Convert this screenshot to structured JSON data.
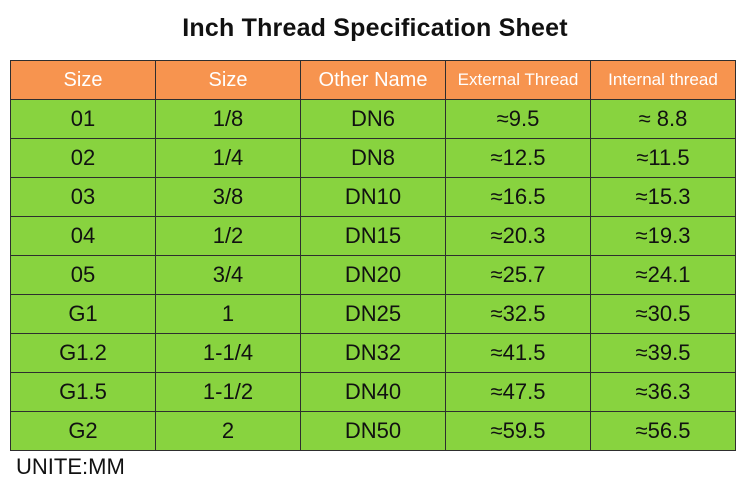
{
  "title": "Inch Thread Specification Sheet",
  "header": [
    "Size",
    "Size",
    "Other Name",
    "External Thread",
    "Internal thread"
  ],
  "rows": [
    [
      "01",
      "1/8",
      "DN6",
      "≈9.5",
      "≈ 8.8"
    ],
    [
      "02",
      "1/4",
      "DN8",
      "≈12.5",
      "≈11.5"
    ],
    [
      "03",
      "3/8",
      "DN10",
      "≈16.5",
      "≈15.3"
    ],
    [
      "04",
      "1/2",
      "DN15",
      "≈20.3",
      "≈19.3"
    ],
    [
      "05",
      "3/4",
      "DN20",
      "≈25.7",
      "≈24.1"
    ],
    [
      "G1",
      "1",
      "DN25",
      "≈32.5",
      "≈30.5"
    ],
    [
      "G1.2",
      "1-1/4",
      "DN32",
      "≈41.5",
      "≈39.5"
    ],
    [
      "G1.5",
      "1-1/2",
      "DN40",
      "≈47.5",
      "≈36.3"
    ],
    [
      "G2",
      "2",
      "DN50",
      "≈59.5",
      "≈56.5"
    ]
  ],
  "unit_label": "UNITE:MM",
  "colors": {
    "header_bg": "#f7944f",
    "cell_bg": "#88d33f",
    "border": "#2e2e2e"
  }
}
